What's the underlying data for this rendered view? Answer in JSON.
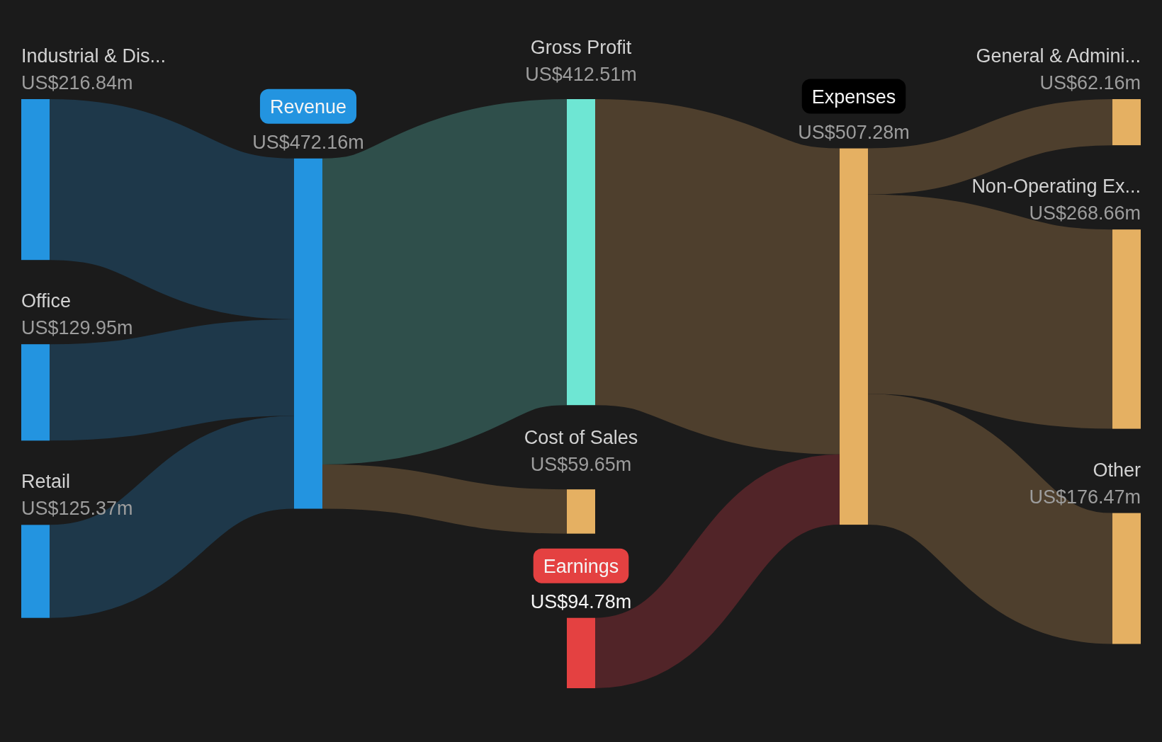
{
  "chart_data": {
    "type": "other",
    "categories": [
      "Industrial & Dis...",
      "Office",
      "Retail",
      "Revenue",
      "Gross Profit",
      "Cost of Sales",
      "Earnings",
      "Expenses",
      "General & Admini...",
      "Non-Operating Ex...",
      "Other"
    ],
    "values": [
      216840000,
      129950000,
      125370000,
      472160000,
      412510000,
      59650000,
      94780000,
      507280000,
      62160000,
      268660000,
      176470000
    ],
    "value_labels": [
      "US$216.84m",
      "US$129.95m",
      "US$125.37m",
      "US$472.16m",
      "US$412.51m",
      "US$59.65m",
      "US$94.78m",
      "US$507.28m",
      "US$62.16m",
      "US$268.66m",
      "US$176.47m"
    ],
    "colors": [
      "#2394e0",
      "#2394e0",
      "#2394e0",
      "#2394e0",
      "#6ee6d3",
      "#e5b062",
      "#e44141",
      "#e5b062",
      "#e5b062",
      "#e5b062",
      "#e5b062"
    ],
    "series": [
      {
        "values": [
          null,
          null,
          null,
          null,
          null,
          null,
          null,
          null,
          null,
          null,
          null
        ],
        "colors": [
          null,
          null,
          null,
          "#1e384a",
          null,
          null,
          null,
          null,
          null,
          null,
          null
        ]
      },
      {
        "values": [
          null,
          null,
          null,
          null,
          null,
          null,
          null,
          null,
          null,
          null,
          null
        ],
        "colors": [
          null,
          null,
          null,
          "#1e384a",
          null,
          null,
          null,
          null,
          null,
          null,
          null
        ]
      },
      {
        "values": [
          null,
          null,
          null,
          null,
          null,
          null,
          null,
          null,
          null,
          null,
          null
        ],
        "colors": [
          null,
          null,
          null,
          "#1e384a",
          null,
          null,
          null,
          null,
          null,
          null,
          null
        ]
      },
      {
        "color": "#2394e0",
        "values": [
          null,
          null,
          null,
          null,
          null,
          null,
          null,
          null,
          null,
          null,
          null
        ],
        "colors": [
          null,
          null,
          null,
          null,
          "#2f4f4b",
          "#4e3f2d",
          null,
          null,
          null,
          null,
          null
        ]
      },
      {
        "values": [
          null,
          null,
          null,
          null,
          null,
          null,
          null,
          null,
          null,
          null,
          null
        ],
        "colors": [
          null,
          null,
          null,
          null,
          null,
          null,
          null,
          "#4e3f2d",
          null,
          null,
          null
        ]
      },
      {
        "values": [
          null,
          null,
          null,
          null,
          null,
          null,
          null,
          null,
          null,
          null,
          null
        ],
        "colors": [
          null,
          null,
          null,
          null,
          null,
          null,
          null,
          null,
          null,
          null,
          null
        ]
      },
      {
        "color": "#e44141",
        "values": [
          null,
          null,
          null,
          null,
          null,
          null,
          null,
          null,
          null,
          null,
          null
        ],
        "colors": [
          null,
          null,
          null,
          null,
          null,
          null,
          null,
          "#512428",
          null,
          null,
          null
        ]
      },
      {
        "color": "#000000",
        "values": [
          null,
          null,
          null,
          null,
          null,
          null,
          null,
          null,
          null,
          null,
          null
        ],
        "colors": [
          null,
          null,
          null,
          null,
          null,
          null,
          null,
          null,
          "#4e3f2d",
          "#4e3f2d",
          "#4e3f2d"
        ]
      },
      {
        "values": [
          null,
          null,
          null,
          null,
          null,
          null,
          null,
          null,
          null,
          null,
          null
        ],
        "colors": [
          null,
          null,
          null,
          null,
          null,
          null,
          null,
          null,
          null,
          null,
          null
        ]
      },
      {
        "values": [
          null,
          null,
          null,
          null,
          null,
          null,
          null,
          null,
          null,
          null,
          null
        ],
        "colors": [
          null,
          null,
          null,
          null,
          null,
          null,
          null,
          null,
          null,
          null,
          null
        ]
      },
      {
        "values": [
          null,
          null,
          null,
          null,
          null,
          null,
          null,
          null,
          null,
          null,
          null
        ],
        "colors": [
          null,
          null,
          null,
          null,
          null,
          null,
          null,
          null,
          null,
          null,
          null
        ]
      }
    ]
  }
}
